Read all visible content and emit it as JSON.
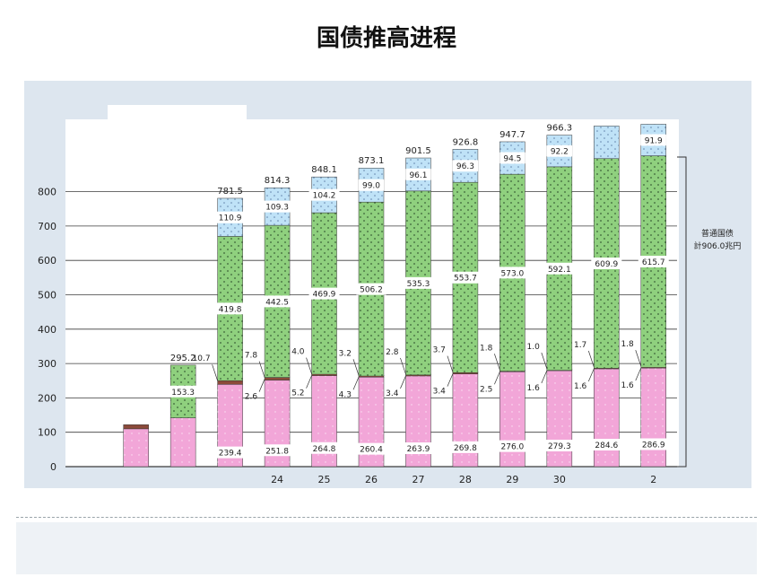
{
  "title": "国债推高进程",
  "note_line1": "普通国债",
  "note_line2": "計906.0兆円",
  "colors": {
    "bottom": "#f2a6d8",
    "thin": "#8b4a3a",
    "mid": "#8fd07e",
    "top": "#bfe2f7",
    "panel": "#dde6ef"
  },
  "chart_data": {
    "type": "bar",
    "stacked": true,
    "title": "",
    "xlabel": "",
    "ylabel": "",
    "ylim": [
      0,
      1000
    ],
    "ytick_labels": [
      "0",
      "100",
      "200",
      "300",
      "400",
      "500",
      "600",
      "700",
      "800"
    ],
    "ytick_values": [
      0,
      100,
      200,
      300,
      400,
      500,
      600,
      700,
      800
    ],
    "categories": [
      "",
      "",
      "",
      "",
      "24",
      "25",
      "26",
      "27",
      "28",
      "29",
      "30",
      "",
      "2"
    ],
    "series": [
      {
        "values": [
          0,
          110,
          142,
          239.4,
          251.8,
          264.8,
          260.4,
          263.9,
          269.8,
          276.0,
          279.3,
          284.6,
          286.9
        ]
      },
      {
        "values": [
          0,
          12,
          0,
          10.7,
          7.8,
          4.0,
          3.2,
          2.8,
          3.7,
          1.8,
          1.0,
          1.7,
          1.8
        ]
      },
      {
        "values": [
          0,
          0,
          153.3,
          419.8,
          442.5,
          469.9,
          506.2,
          535.3,
          553.7,
          573.0,
          592.1,
          609.9,
          615.7
        ]
      },
      {
        "values": [
          0,
          0,
          0,
          110.9,
          109.3,
          104.2,
          99.0,
          96.1,
          96.3,
          94.5,
          92.2,
          95.0,
          91.9
        ]
      }
    ],
    "totals": [
      "",
      "",
      "295.2",
      "781.5",
      "814.3",
      "848.1",
      "873.1",
      "901.5",
      "926.8",
      "947.7",
      "966.3",
      "",
      ""
    ],
    "bottom_labels": [
      "",
      "",
      "",
      "239.4",
      "251.8",
      "264.8",
      "260.4",
      "263.9",
      "269.8",
      "276.0",
      "279.3",
      "284.6",
      "286.9"
    ],
    "mid_labels": [
      "",
      "",
      "153.3",
      "419.8",
      "442.5",
      "469.9",
      "506.2",
      "535.3",
      "553.7",
      "573.0",
      "592.1",
      "609.9",
      "615.7"
    ],
    "top_labels": [
      "",
      "",
      "",
      "110.9",
      "109.3",
      "104.2",
      "99.0",
      "96.1",
      "96.3",
      "94.5",
      "92.2",
      "",
      "91.9"
    ],
    "thin_upper_labels": [
      "",
      "",
      "",
      "10.7",
      "7.8",
      "4.0",
      "3.2",
      "2.8",
      "3.7",
      "1.8",
      "1.0",
      "1.7",
      "1.8"
    ],
    "thin_lower_labels": [
      "",
      "",
      "",
      "",
      "2.6",
      "5.2",
      "4.3",
      "3.4",
      "3.4",
      "2.5",
      "1.6",
      "1.6",
      "1.6"
    ]
  }
}
